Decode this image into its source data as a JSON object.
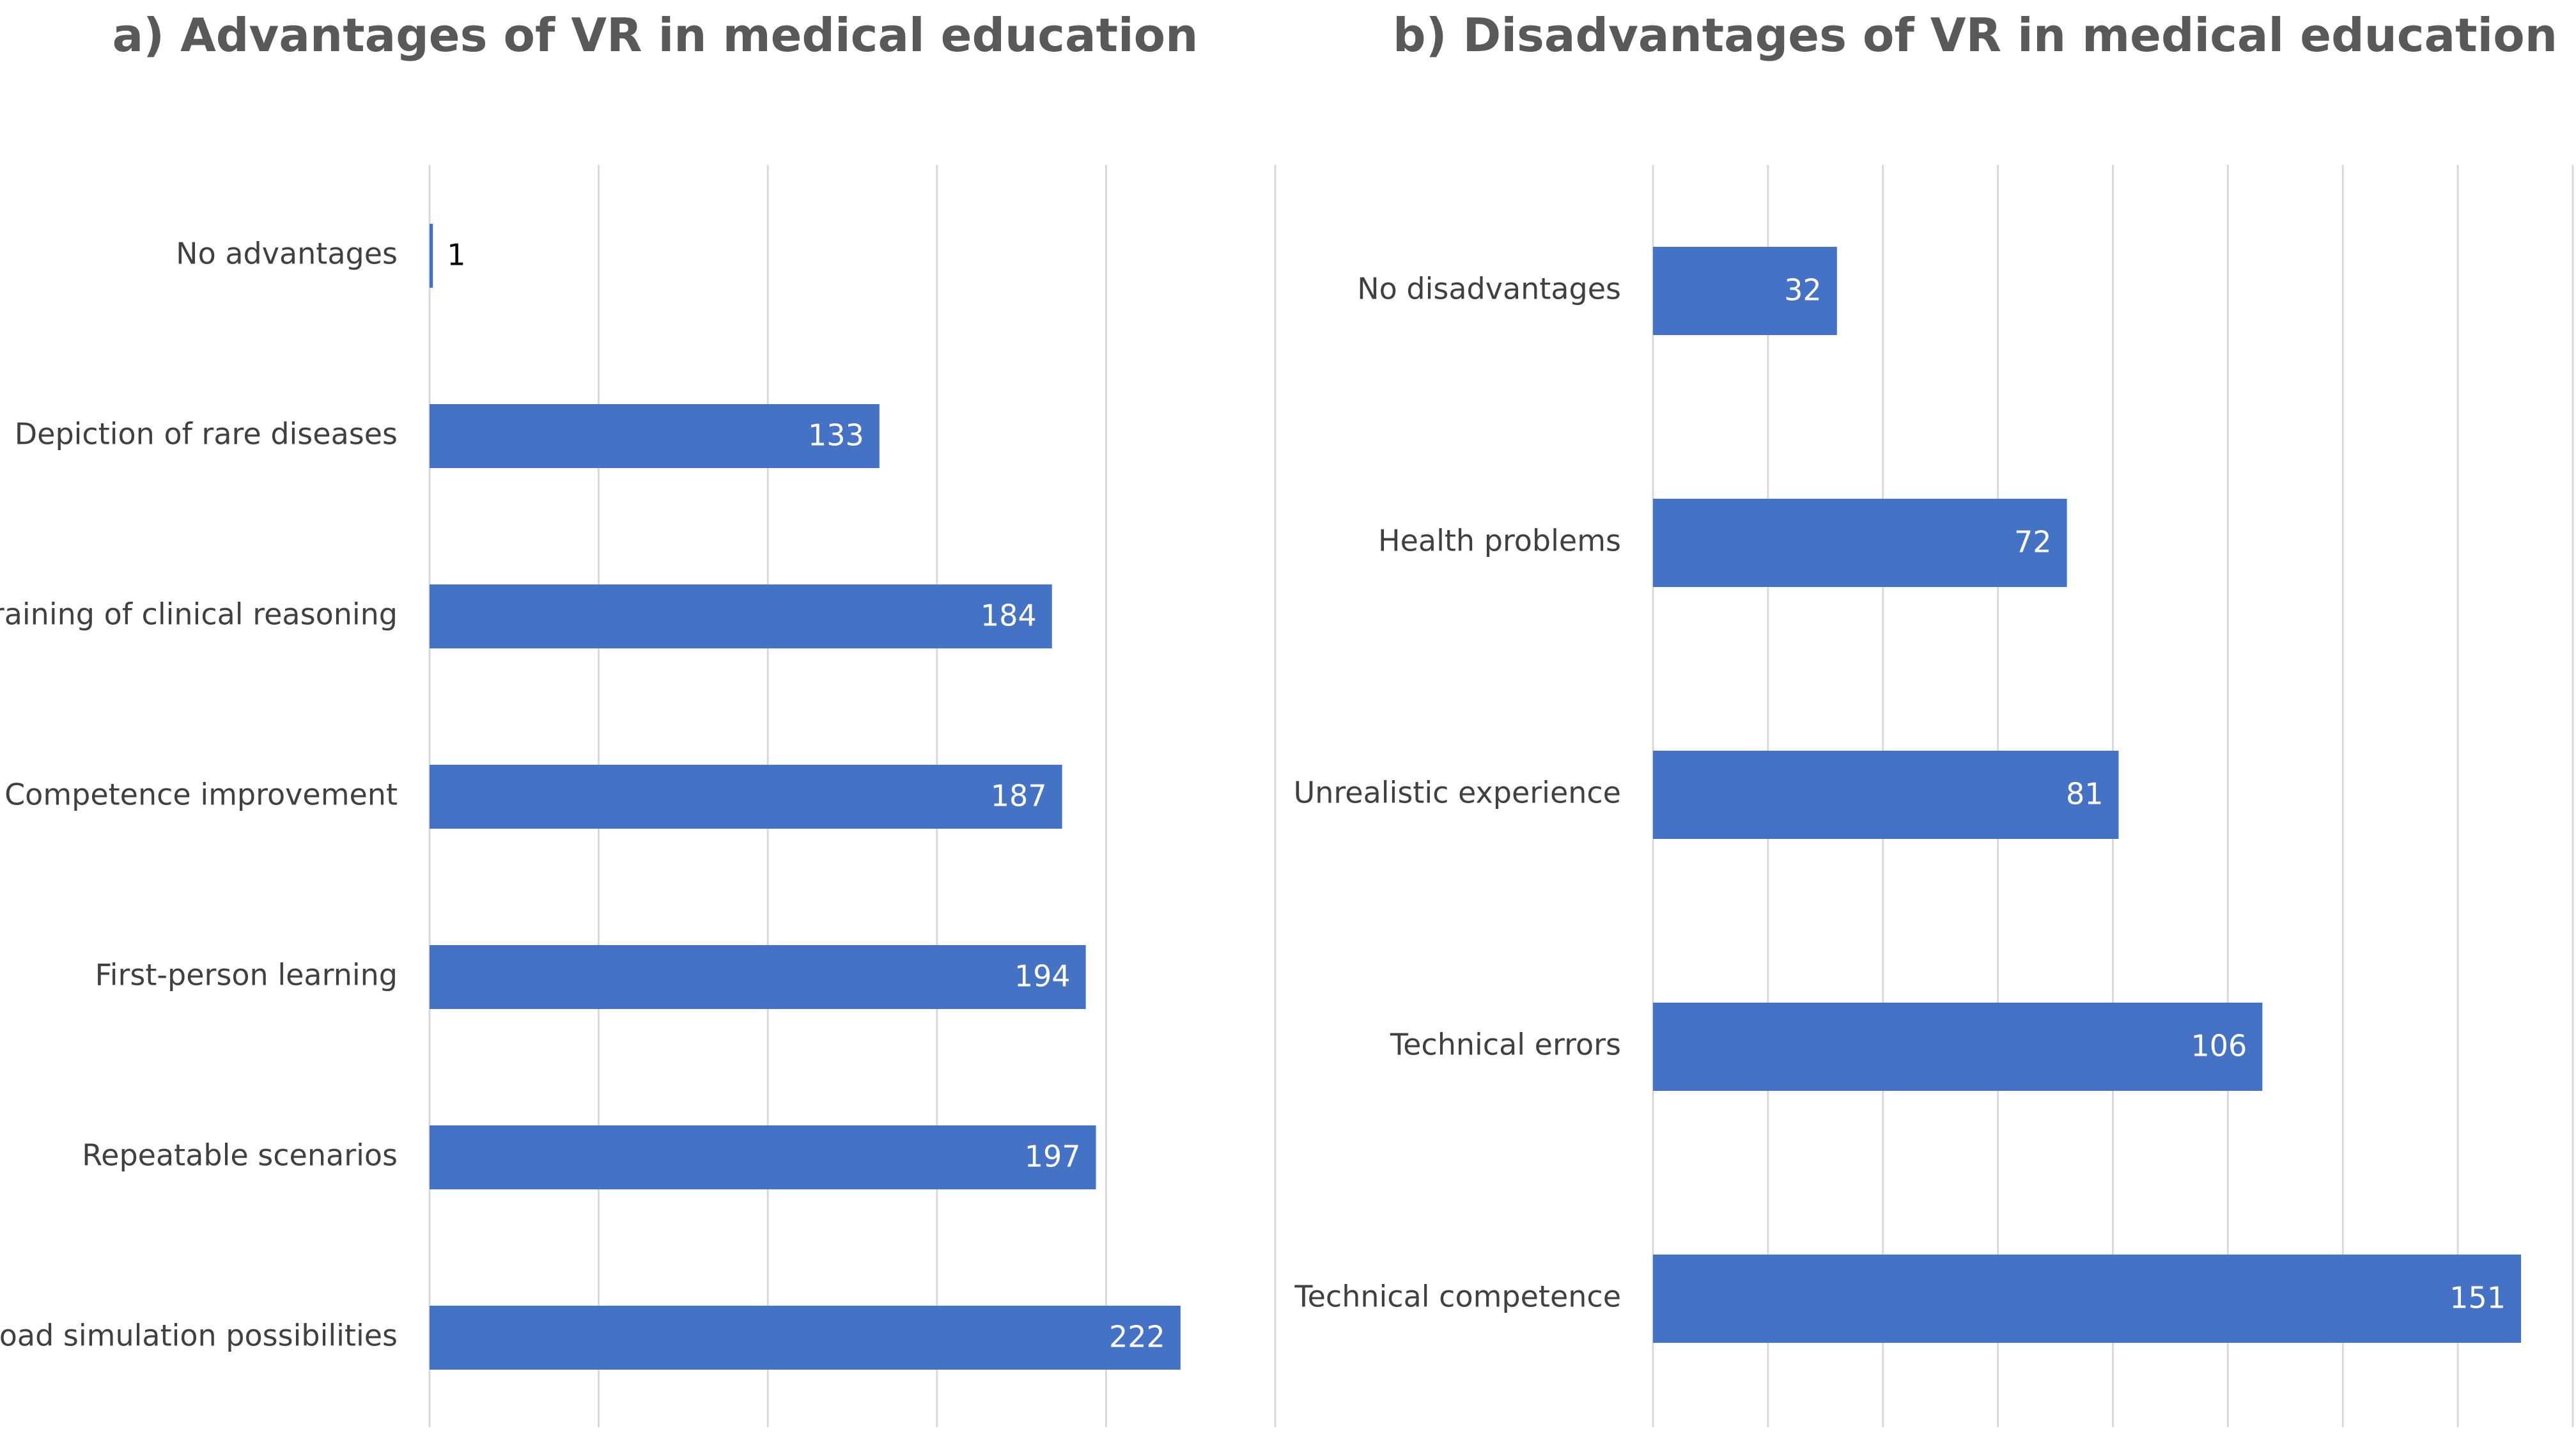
{
  "chart_data": [
    {
      "type": "bar",
      "orientation": "horizontal",
      "title": "a) Advantages of VR in medical education",
      "categories": [
        "No advantages",
        "Depiction of rare diseases",
        "Training of clinical reasoning",
        "Competence improvement",
        "First-person learning",
        "Repeatable scenarios",
        "Broad simulation possibilities"
      ],
      "values": [
        1,
        133,
        184,
        187,
        194,
        197,
        222
      ],
      "xlim": [
        0,
        250
      ],
      "grid": true,
      "color": "#4472c4"
    },
    {
      "type": "bar",
      "orientation": "horizontal",
      "title": "b) Disadvantages of VR in medical education",
      "categories": [
        "No disadvantages",
        "Health problems",
        "Unrealistic experience",
        "Technical errors",
        "Technical competence"
      ],
      "values": [
        32,
        72,
        81,
        106,
        151
      ],
      "xlim": [
        0,
        160
      ],
      "grid": true,
      "color": "#4472c4"
    }
  ]
}
